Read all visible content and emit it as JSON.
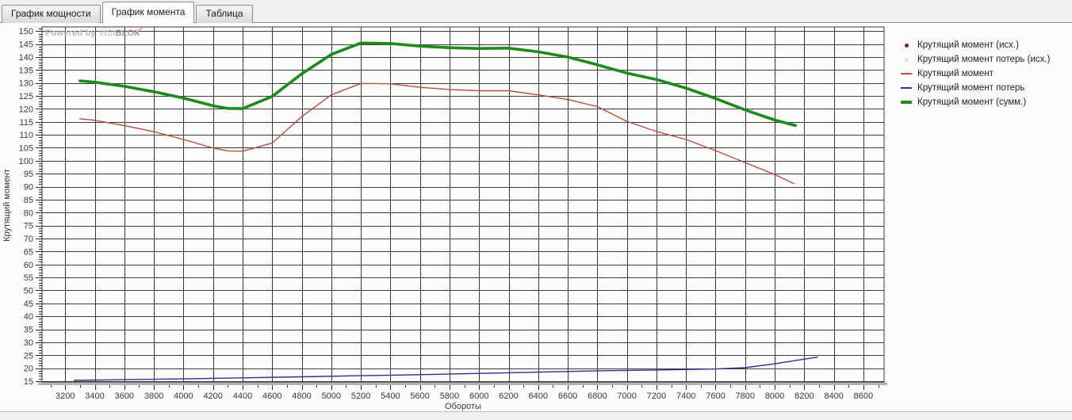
{
  "tabs": [
    {
      "label": "График мощности",
      "active": false
    },
    {
      "label": "График момента",
      "active": true
    },
    {
      "label": "Таблица",
      "active": false
    }
  ],
  "watermark": {
    "prefix": "Powered by ",
    "brand_light": "VISI",
    "brand_bold": "BLOX"
  },
  "chart_data": {
    "type": "line",
    "xlabel": "Обороты",
    "ylabel": "Крутящий момент",
    "grid": true,
    "legend_position": "right",
    "x_axis": {
      "min": 3043,
      "max": 8740,
      "first_label": 3200,
      "last_label": 8600,
      "label_step": 200,
      "minor_step": 100
    },
    "y_axis": {
      "min": 14.7,
      "max": 151.6,
      "first_label": 15,
      "last_label": 150,
      "label_step": 5,
      "minor_step": 1
    },
    "colors": {
      "grid": "#3a3a3a",
      "plot_bg": "#fcfcfb",
      "axis_band": "#b3b3b3",
      "tick": "#2e2e2e"
    },
    "legend": [
      {
        "label": "Крутящий момент (исх.)",
        "marker": "dot",
        "color": "#701f5c"
      },
      {
        "label": "Крутящий момент потерь (исх.)",
        "marker": "dot",
        "color": "#cfe8e2"
      },
      {
        "label": "Крутящий момент",
        "marker": "line",
        "color": "#bd4a45"
      },
      {
        "label": "Крутящий момент потерь",
        "marker": "line",
        "color": "#2e3191"
      },
      {
        "label": "Крутящий момент (сумм.)",
        "marker": "thick",
        "color": "#1d8a1d"
      }
    ],
    "series": [
      {
        "name": "Крутящий момент (исх.)",
        "type": "scatter",
        "color": "#701f5c",
        "x": [],
        "y": []
      },
      {
        "name": "Крутящий момент потерь (исх.)",
        "type": "scatter",
        "color": "#cfe8e2",
        "x": [],
        "y": []
      },
      {
        "name": "Крутящий момент потерь",
        "type": "line",
        "color": "#2e3191",
        "width": 1.4,
        "x": [
          3260,
          3600,
          4000,
          4400,
          4800,
          5200,
          5600,
          6000,
          6400,
          6800,
          7200,
          7600,
          7800,
          8000,
          8200,
          8290
        ],
        "y": [
          15.3,
          15.6,
          15.9,
          16.3,
          16.7,
          17.1,
          17.5,
          18.0,
          18.5,
          19.0,
          19.3,
          19.7,
          20.2,
          21.7,
          23.5,
          24.3
        ]
      },
      {
        "name": "Крутящий момент",
        "type": "line",
        "color": "#bd4a45",
        "width": 1.4,
        "x": [
          3300,
          3400,
          3600,
          3800,
          4000,
          4200,
          4300,
          4400,
          4600,
          4800,
          5000,
          5200,
          5400,
          5600,
          5800,
          6000,
          6200,
          6400,
          6600,
          6800,
          7000,
          7200,
          7400,
          7600,
          7800,
          8000,
          8130
        ],
        "y": [
          116.2,
          115.6,
          113.6,
          111.2,
          108.2,
          104.9,
          103.8,
          103.7,
          106.8,
          117.0,
          125.4,
          129.8,
          129.7,
          128.3,
          127.5,
          127.0,
          127.0,
          125.4,
          123.6,
          120.9,
          115.2,
          111.3,
          108.2,
          103.9,
          99.3,
          94.7,
          91.2
        ]
      },
      {
        "name": "Крутящий момент (сумм.)",
        "type": "line",
        "color": "#1d8a1d",
        "width": 3.6,
        "x": [
          3300,
          3400,
          3600,
          3800,
          4000,
          4200,
          4300,
          4400,
          4600,
          4800,
          5000,
          5200,
          5400,
          5600,
          5800,
          6000,
          6200,
          6400,
          6600,
          6800,
          7000,
          7200,
          7400,
          7600,
          7800,
          8000,
          8140
        ],
        "y": [
          130.8,
          130.3,
          128.7,
          126.6,
          124.2,
          121.2,
          120.2,
          120.1,
          124.8,
          133.5,
          141.0,
          145.4,
          145.2,
          144.2,
          143.6,
          143.3,
          143.4,
          142.0,
          140.0,
          137.0,
          133.8,
          131.3,
          128.0,
          124.0,
          119.6,
          115.7,
          113.6
        ]
      }
    ]
  }
}
